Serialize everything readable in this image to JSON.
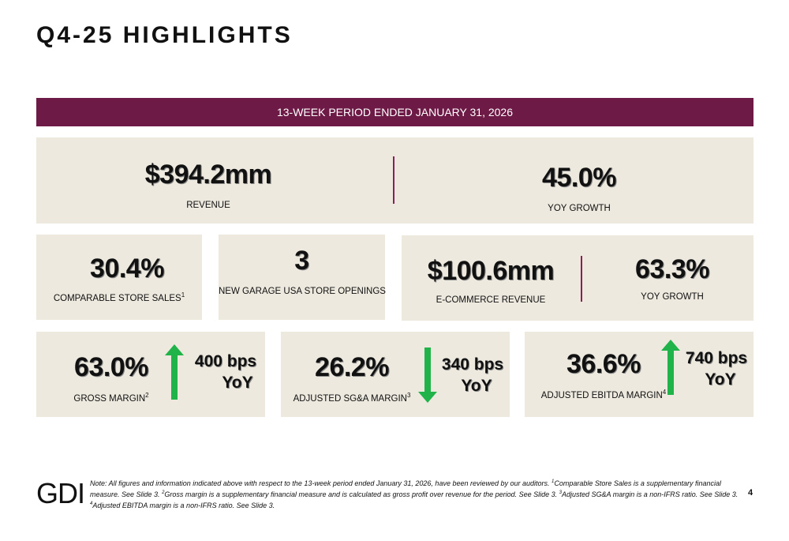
{
  "page": {
    "title": "Q4-25 HIGHLIGHTS",
    "page_number": "4",
    "logo": "GDI"
  },
  "banner": {
    "text": "13-WEEK PERIOD ENDED JANUARY 31, 2026"
  },
  "row1": {
    "revenue": {
      "value": "$394.2mm",
      "label": "REVENUE"
    },
    "yoy": {
      "value": "45.0%",
      "label": "YOY GROWTH"
    }
  },
  "row2": {
    "comparable": {
      "value": "30.4%",
      "label": "COMPARABLE STORE SALES",
      "sup": "1"
    },
    "openings": {
      "value": "3",
      "label": "NEW GARAGE USA STORE OPENINGS"
    },
    "ecommerce": {
      "value": "$100.6mm",
      "label": "E-COMMERCE REVENUE"
    },
    "ecom_yoy": {
      "value": "63.3%",
      "label": "YOY GROWTH"
    }
  },
  "row3": {
    "gross": {
      "value": "63.0%",
      "label": "GROSS MARGIN",
      "sup": "2",
      "bps": "400 bps",
      "yoy": "YoY",
      "direction": "up"
    },
    "sga": {
      "value": "26.2%",
      "label": "ADJUSTED SG&A MARGIN",
      "sup": "3",
      "bps": "340 bps",
      "yoy": "YoY",
      "direction": "down"
    },
    "ebitda": {
      "value": "36.6%",
      "label": "ADJUSTED EBITDA MARGIN",
      "sup": "4",
      "bps": "740 bps",
      "yoy": "YoY",
      "direction": "up"
    }
  },
  "colors": {
    "accent": "#6e1a47",
    "card": "#ede9df",
    "arrow": "#1fb34a"
  },
  "footnote": {
    "p1": "Note: All figures and information indicated above with respect to the 13-week period ended January 31, 2026, have been reviewed by our auditors. ",
    "s1": "1",
    "p2": "Comparable Store Sales is a supplementary financial measure. See Slide 3. ",
    "s2": "2",
    "p3": "Gross margin is a supplementary financial measure and is calculated as gross profit over revenue for the period. See Slide 3. ",
    "s3": "3",
    "p4": "Adjusted SG&A margin is a non-IFRS ratio. See Slide 3. ",
    "s4": "4",
    "p5": "Adjusted EBITDA margin is a non-IFRS ratio. See Slide 3."
  }
}
